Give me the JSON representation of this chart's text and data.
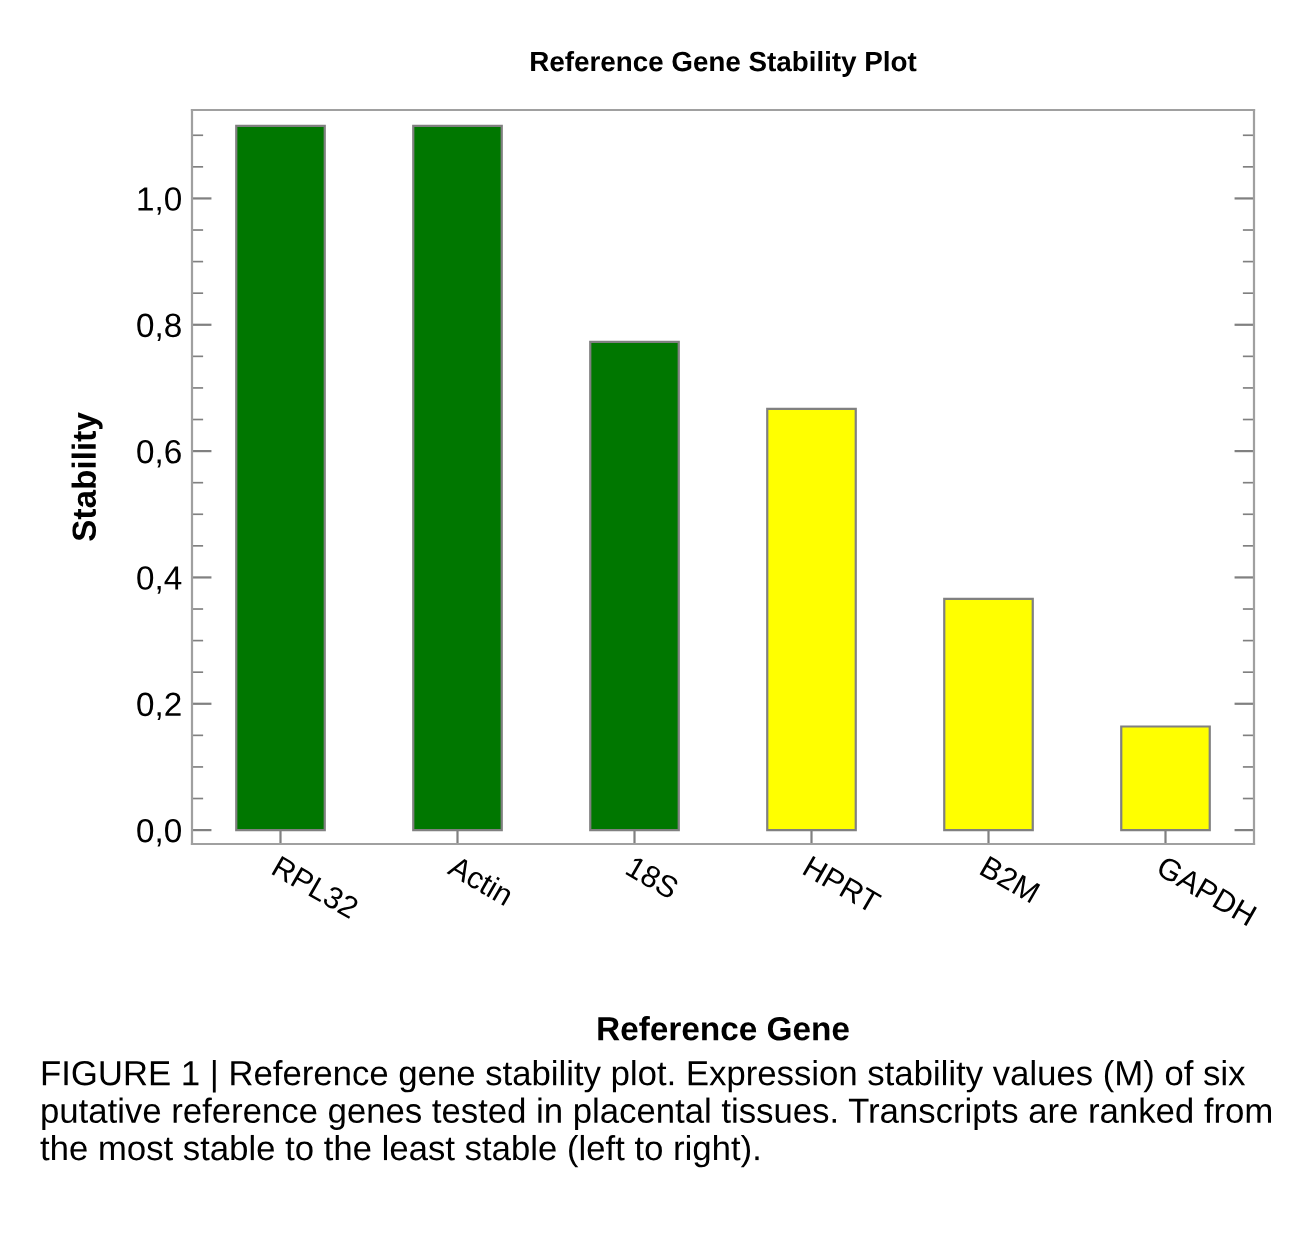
{
  "chart_data": {
    "type": "bar",
    "title": "Reference Gene Stability Plot",
    "xlabel": "Reference Gene",
    "ylabel": "Stability",
    "categories": [
      "RPL32",
      "Actin",
      "18S",
      "HPRT",
      "B2M",
      "GAPDH"
    ],
    "values": [
      1.115,
      1.115,
      0.773,
      0.667,
      0.366,
      0.164
    ],
    "colors": [
      "#007700",
      "#007700",
      "#007700",
      "#ffff00",
      "#ffff00",
      "#ffff00"
    ],
    "ylim": [
      -0.022,
      1.14
    ],
    "yticks": [
      {
        "value": 0,
        "label": "0,0"
      },
      {
        "value": 0.2,
        "label": "0,2"
      },
      {
        "value": 0.4,
        "label": "0,4"
      },
      {
        "value": 0.6,
        "label": "0,6"
      },
      {
        "value": 0.8,
        "label": "0,8"
      },
      {
        "value": 1.0,
        "label": "1,0"
      }
    ],
    "grid": false,
    "legend": false,
    "annotations": [
      "FIGURE 1 | Reference gene stability plot. Expression stability values (M) of six putative reference genes tested in placental tissues. Transcripts are ranked from the most stable to the least stable (left to right)."
    ]
  }
}
